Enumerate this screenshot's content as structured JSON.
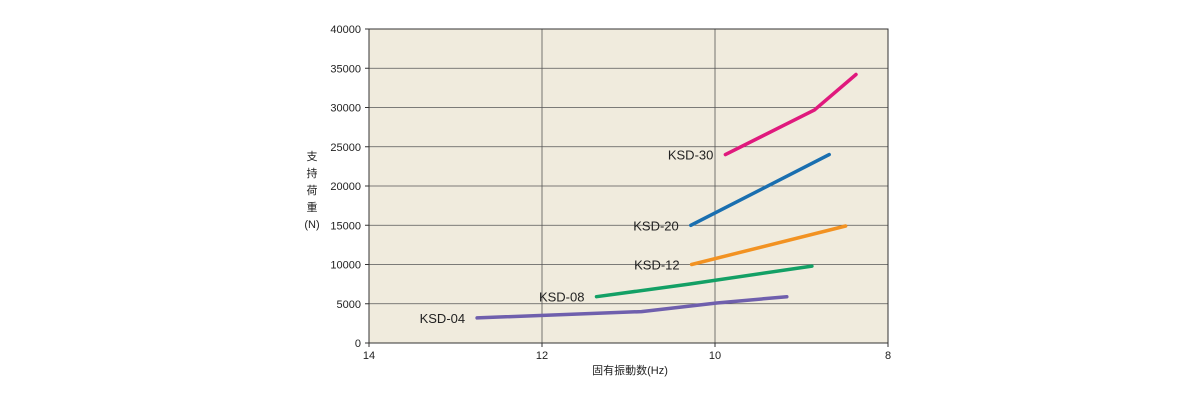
{
  "chart_data": {
    "type": "line",
    "title": "",
    "xlabel": "固有振動数(Hz)",
    "ylabel": [
      "支",
      "持",
      "荷",
      "重",
      "(N)"
    ],
    "xlim": [
      14,
      8
    ],
    "ylim": [
      0,
      40000
    ],
    "x_reversed": true,
    "grid": true,
    "x_ticks": [
      14,
      12,
      10,
      8
    ],
    "y_ticks": [
      0,
      5000,
      10000,
      15000,
      20000,
      25000,
      30000,
      35000,
      40000
    ],
    "legend": "inline labels",
    "series": [
      {
        "name": "KSD-30",
        "color": "#e0197d",
        "points": [
          [
            9.88,
            24000
          ],
          [
            8.85,
            29700
          ],
          [
            8.37,
            34200
          ]
        ]
      },
      {
        "name": "KSD-20",
        "color": "#1a6fb0",
        "points": [
          [
            10.28,
            15000
          ],
          [
            8.68,
            24000
          ]
        ]
      },
      {
        "name": "KSD-12",
        "color": "#f29222",
        "points": [
          [
            10.27,
            10000
          ],
          [
            8.49,
            14900
          ]
        ]
      },
      {
        "name": "KSD-08",
        "color": "#13a065",
        "points": [
          [
            11.37,
            5900
          ],
          [
            10.3,
            7500
          ],
          [
            8.88,
            9800
          ]
        ]
      },
      {
        "name": "KSD-04",
        "color": "#6f5fad",
        "points": [
          [
            12.75,
            3200
          ],
          [
            10.85,
            4000
          ],
          [
            9.98,
            5100
          ],
          [
            9.17,
            5900
          ]
        ]
      }
    ],
    "plot_background": "#f0ebdd"
  }
}
